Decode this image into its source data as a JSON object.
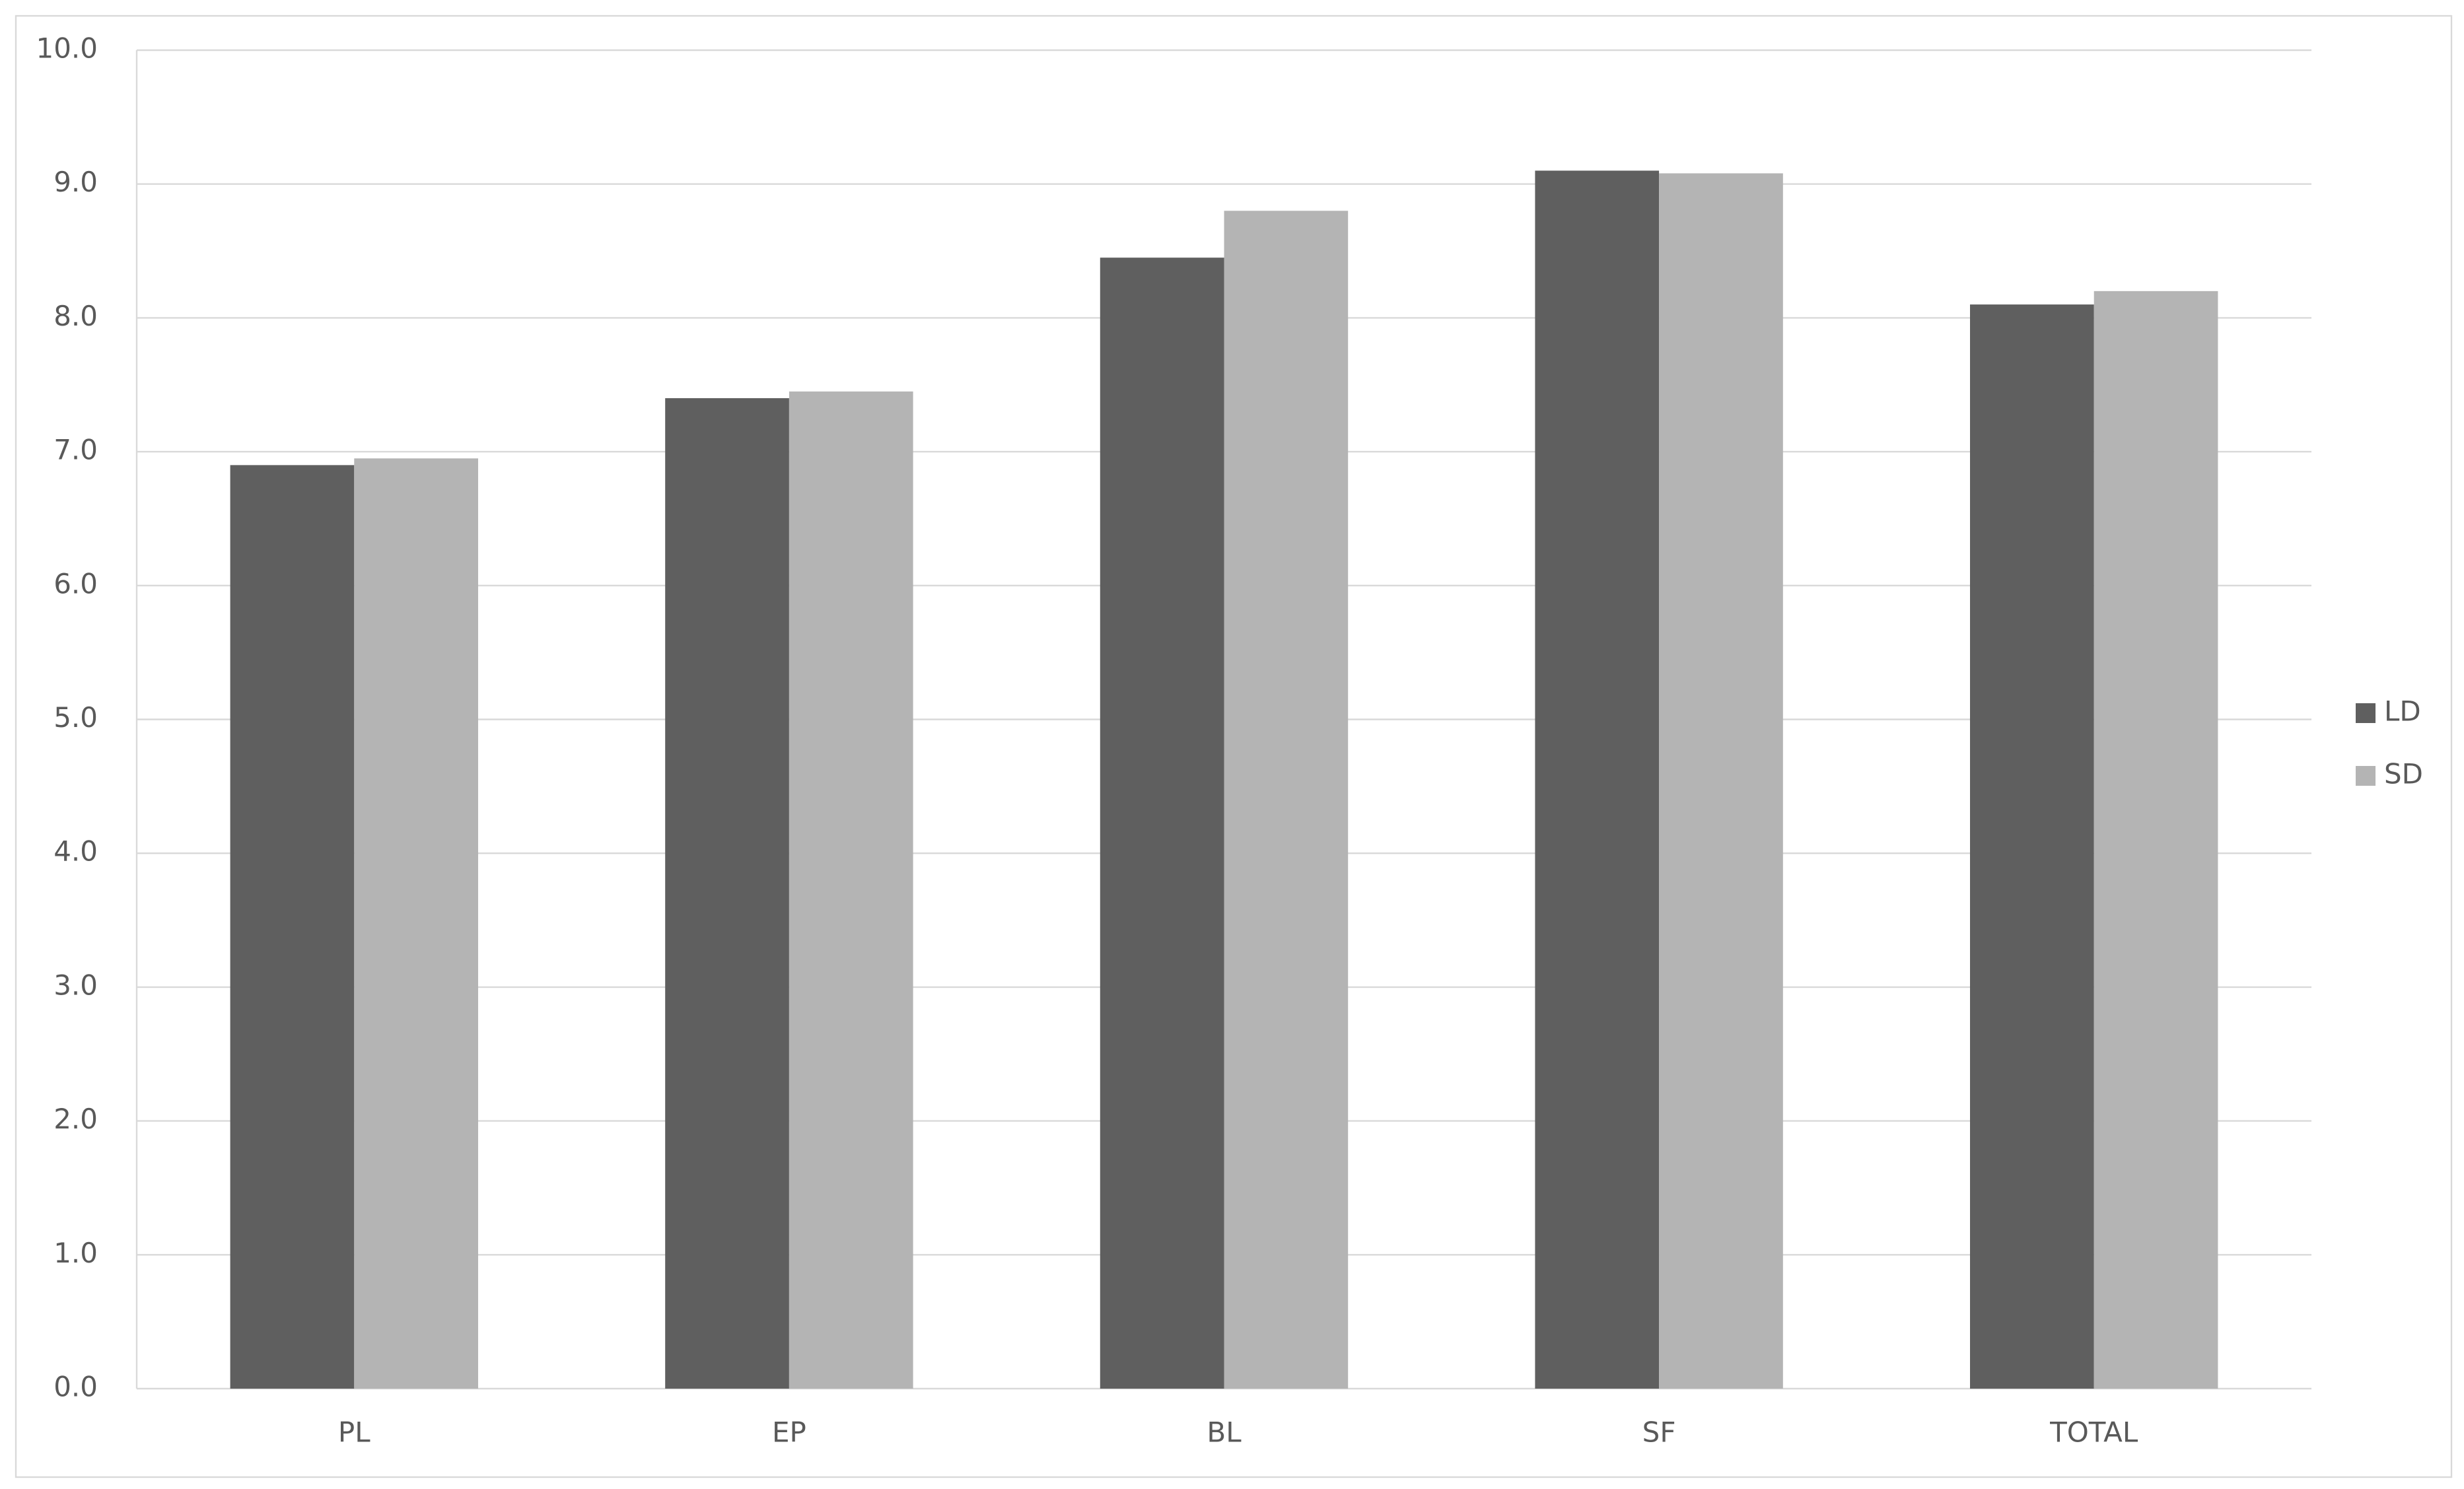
{
  "chart_data": {
    "type": "bar",
    "categories": [
      "PL",
      "EP",
      "BL",
      "SF",
      "TOTAL"
    ],
    "series": [
      {
        "name": "LD",
        "color": "#5f5f5f",
        "values": [
          6.9,
          7.4,
          8.45,
          9.1,
          8.1
        ]
      },
      {
        "name": "SD",
        "color": "#b4b4b4",
        "values": [
          6.95,
          7.45,
          8.8,
          9.08,
          8.2
        ]
      }
    ],
    "ylim": [
      0,
      10
    ],
    "yticks": [
      {
        "value": 0,
        "label": "0.0"
      },
      {
        "value": 1,
        "label": "1.0"
      },
      {
        "value": 2,
        "label": "2.0"
      },
      {
        "value": 3,
        "label": "3.0"
      },
      {
        "value": 4,
        "label": "4.0"
      },
      {
        "value": 5,
        "label": "5.0"
      },
      {
        "value": 6,
        "label": "6.0"
      },
      {
        "value": 7,
        "label": "7.0"
      },
      {
        "value": 8,
        "label": "8.0"
      },
      {
        "value": 9,
        "label": "9.0"
      },
      {
        "value": 10,
        "label": "10.0"
      }
    ],
    "grid": true,
    "legend": "right"
  }
}
